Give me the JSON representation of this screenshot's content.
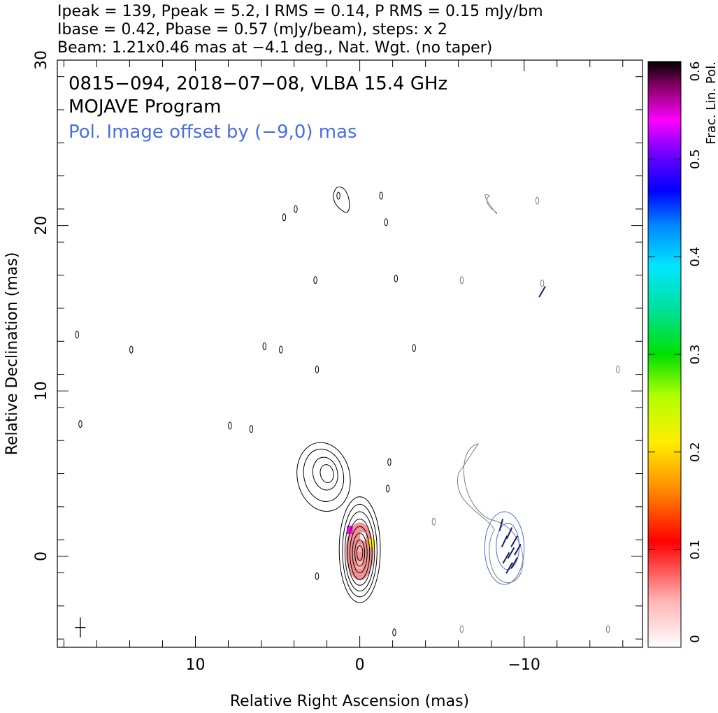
{
  "header": {
    "line1": "Ipeak = 139, Ppeak = 5.2, I RMS = 0.14, P RMS = 0.15 mJy/bm",
    "line2": "Ibase = 0.42, Pbase = 0.57 (mJy/beam), steps: x 2",
    "line3": "Beam: 1.21x0.46 mas at −4.1 deg., Nat. Wgt. (no taper)"
  },
  "annotations": {
    "source": "0815−094, 2018−07−08, VLBA 15.4 GHz",
    "program": "MOJAVE Program",
    "offset_note": "Pol. Image offset by (−9,0) mas"
  },
  "colors": {
    "total_intensity_contour": "#000000",
    "polarization_contour": "#7f7f7f",
    "pol_inner_contour": "#4a6ee0",
    "evpa_vectors": "#1a1a6e",
    "offset_note": "#4a6ee0"
  },
  "chart_data": {
    "type": "heatmap",
    "title": "",
    "xlabel": "Relative Right Ascension (mas)",
    "ylabel": "Relative Declination (mas)",
    "xlim": [
      18.4,
      -17.2
    ],
    "ylim": [
      -5.5,
      30
    ],
    "x_ticks": [
      {
        "value": 10,
        "label": "10"
      },
      {
        "value": 0,
        "label": "0"
      },
      {
        "value": -10,
        "label": "−10"
      }
    ],
    "y_ticks": [
      {
        "value": 0,
        "label": "0"
      },
      {
        "value": 10,
        "label": "10"
      },
      {
        "value": 20,
        "label": "20"
      },
      {
        "value": 30,
        "label": "30"
      }
    ],
    "colorbar": {
      "label": "Frac. Lin. Pol.",
      "range": [
        0,
        0.6
      ],
      "ticks": [
        {
          "value": 0,
          "label": "0"
        },
        {
          "value": 0.1,
          "label": "0.1"
        },
        {
          "value": 0.2,
          "label": "0.2"
        },
        {
          "value": 0.3,
          "label": "0.3"
        },
        {
          "value": 0.4,
          "label": "0.4"
        },
        {
          "value": 0.5,
          "label": "0.5"
        },
        {
          "value": 0.6,
          "label": "0.6"
        }
      ]
    },
    "core_contours": [
      {
        "cx": 0,
        "cy": 0.4,
        "rx": 1.25,
        "ry": 3.2
      },
      {
        "cx": 0,
        "cy": 0.35,
        "rx": 1.05,
        "ry": 2.8
      },
      {
        "cx": 0,
        "cy": 0.3,
        "rx": 0.9,
        "ry": 2.4
      },
      {
        "cx": 0,
        "cy": 0.25,
        "rx": 0.75,
        "ry": 2.0
      },
      {
        "cx": 0,
        "cy": 0.2,
        "rx": 0.6,
        "ry": 1.6
      },
      {
        "cx": 0,
        "cy": 0.2,
        "rx": 0.45,
        "ry": 1.2
      },
      {
        "cx": 0,
        "cy": 0.2,
        "rx": 0.3,
        "ry": 0.8
      },
      {
        "cx": 0,
        "cy": 0.2,
        "rx": 0.18,
        "ry": 0.45
      }
    ],
    "jet_contours": [
      {
        "cx": 2.2,
        "cy": 4.8,
        "rx": 1.6,
        "ry": 2.1
      },
      {
        "cx": 2.2,
        "cy": 4.9,
        "rx": 1.2,
        "ry": 1.6
      },
      {
        "cx": 2.1,
        "cy": 5.0,
        "rx": 0.75,
        "ry": 1.0
      },
      {
        "cx": 2.0,
        "cy": 5.0,
        "rx": 0.4,
        "ry": 0.55
      }
    ],
    "fractional_pol_pixels": [
      {
        "x": 0.0,
        "y": 0.5,
        "fpol": 0.07
      },
      {
        "x": 0.0,
        "y": -0.5,
        "fpol": 0.05
      },
      {
        "x": -0.2,
        "y": 1.2,
        "fpol": 0.04
      },
      {
        "x": 0.6,
        "y": 1.6,
        "fpol": 0.55
      },
      {
        "x": -0.7,
        "y": 0.8,
        "fpol": 0.25
      }
    ],
    "noise_contours": [
      {
        "x": 17.2,
        "y": 13.4
      },
      {
        "x": 17.0,
        "y": 8.0
      },
      {
        "x": 13.9,
        "y": 12.5
      },
      {
        "x": 7.9,
        "y": 7.9
      },
      {
        "x": 5.8,
        "y": 12.7
      },
      {
        "x": 4.8,
        "y": 12.5
      },
      {
        "x": 2.7,
        "y": 16.7
      },
      {
        "x": 2.6,
        "y": 11.3
      },
      {
        "x": 4.6,
        "y": 20.5
      },
      {
        "x": 3.9,
        "y": 21.0
      },
      {
        "x": 1.3,
        "y": 21.8
      },
      {
        "x": -1.3,
        "y": 21.8
      },
      {
        "x": -1.6,
        "y": 20.2
      },
      {
        "x": -2.2,
        "y": 16.8
      },
      {
        "x": -4.5,
        "y": 2.1
      },
      {
        "x": -6.2,
        "y": 16.7
      },
      {
        "x": -3.3,
        "y": 12.6
      },
      {
        "x": -10.8,
        "y": 21.5
      },
      {
        "x": -11.1,
        "y": 16.5
      },
      {
        "x": -15.7,
        "y": 11.3
      },
      {
        "x": -6.2,
        "y": -4.4
      },
      {
        "x": -15.1,
        "y": -4.4
      },
      {
        "x": -2.1,
        "y": -4.6
      },
      {
        "x": 2.6,
        "y": -1.2
      },
      {
        "x": 6.6,
        "y": 7.7
      },
      {
        "x": -1.7,
        "y": 4.1
      },
      {
        "x": -1.8,
        "y": 5.7
      }
    ],
    "pol_contours": [
      {
        "cx": -8.8,
        "cy": 0.5,
        "rx": 1.2,
        "ry": 2.2
      },
      {
        "cx": -9.0,
        "cy": 0.6,
        "rx": 0.7,
        "ry": 1.4
      }
    ],
    "evpa_vectors": [
      {
        "x": -8.6,
        "y": 1.9,
        "angle": 15
      },
      {
        "x": -9.1,
        "y": 1.4,
        "angle": 25
      },
      {
        "x": -9.4,
        "y": 0.9,
        "angle": 30
      },
      {
        "x": -9.6,
        "y": 0.4,
        "angle": 30
      },
      {
        "x": -9.2,
        "y": 0.2,
        "angle": 30
      },
      {
        "x": -8.9,
        "y": -0.1,
        "angle": 30
      },
      {
        "x": -9.4,
        "y": -0.4,
        "angle": 30
      },
      {
        "x": -8.8,
        "y": 0.9,
        "angle": 25
      },
      {
        "x": -9.1,
        "y": -0.7,
        "angle": 30
      },
      {
        "x": -11.1,
        "y": 16.0,
        "angle": 30
      }
    ],
    "beam": {
      "major_mas": 1.21,
      "minor_mas": 0.46,
      "pa_deg": -4.1,
      "x": 17.0,
      "y": -4.3
    }
  }
}
